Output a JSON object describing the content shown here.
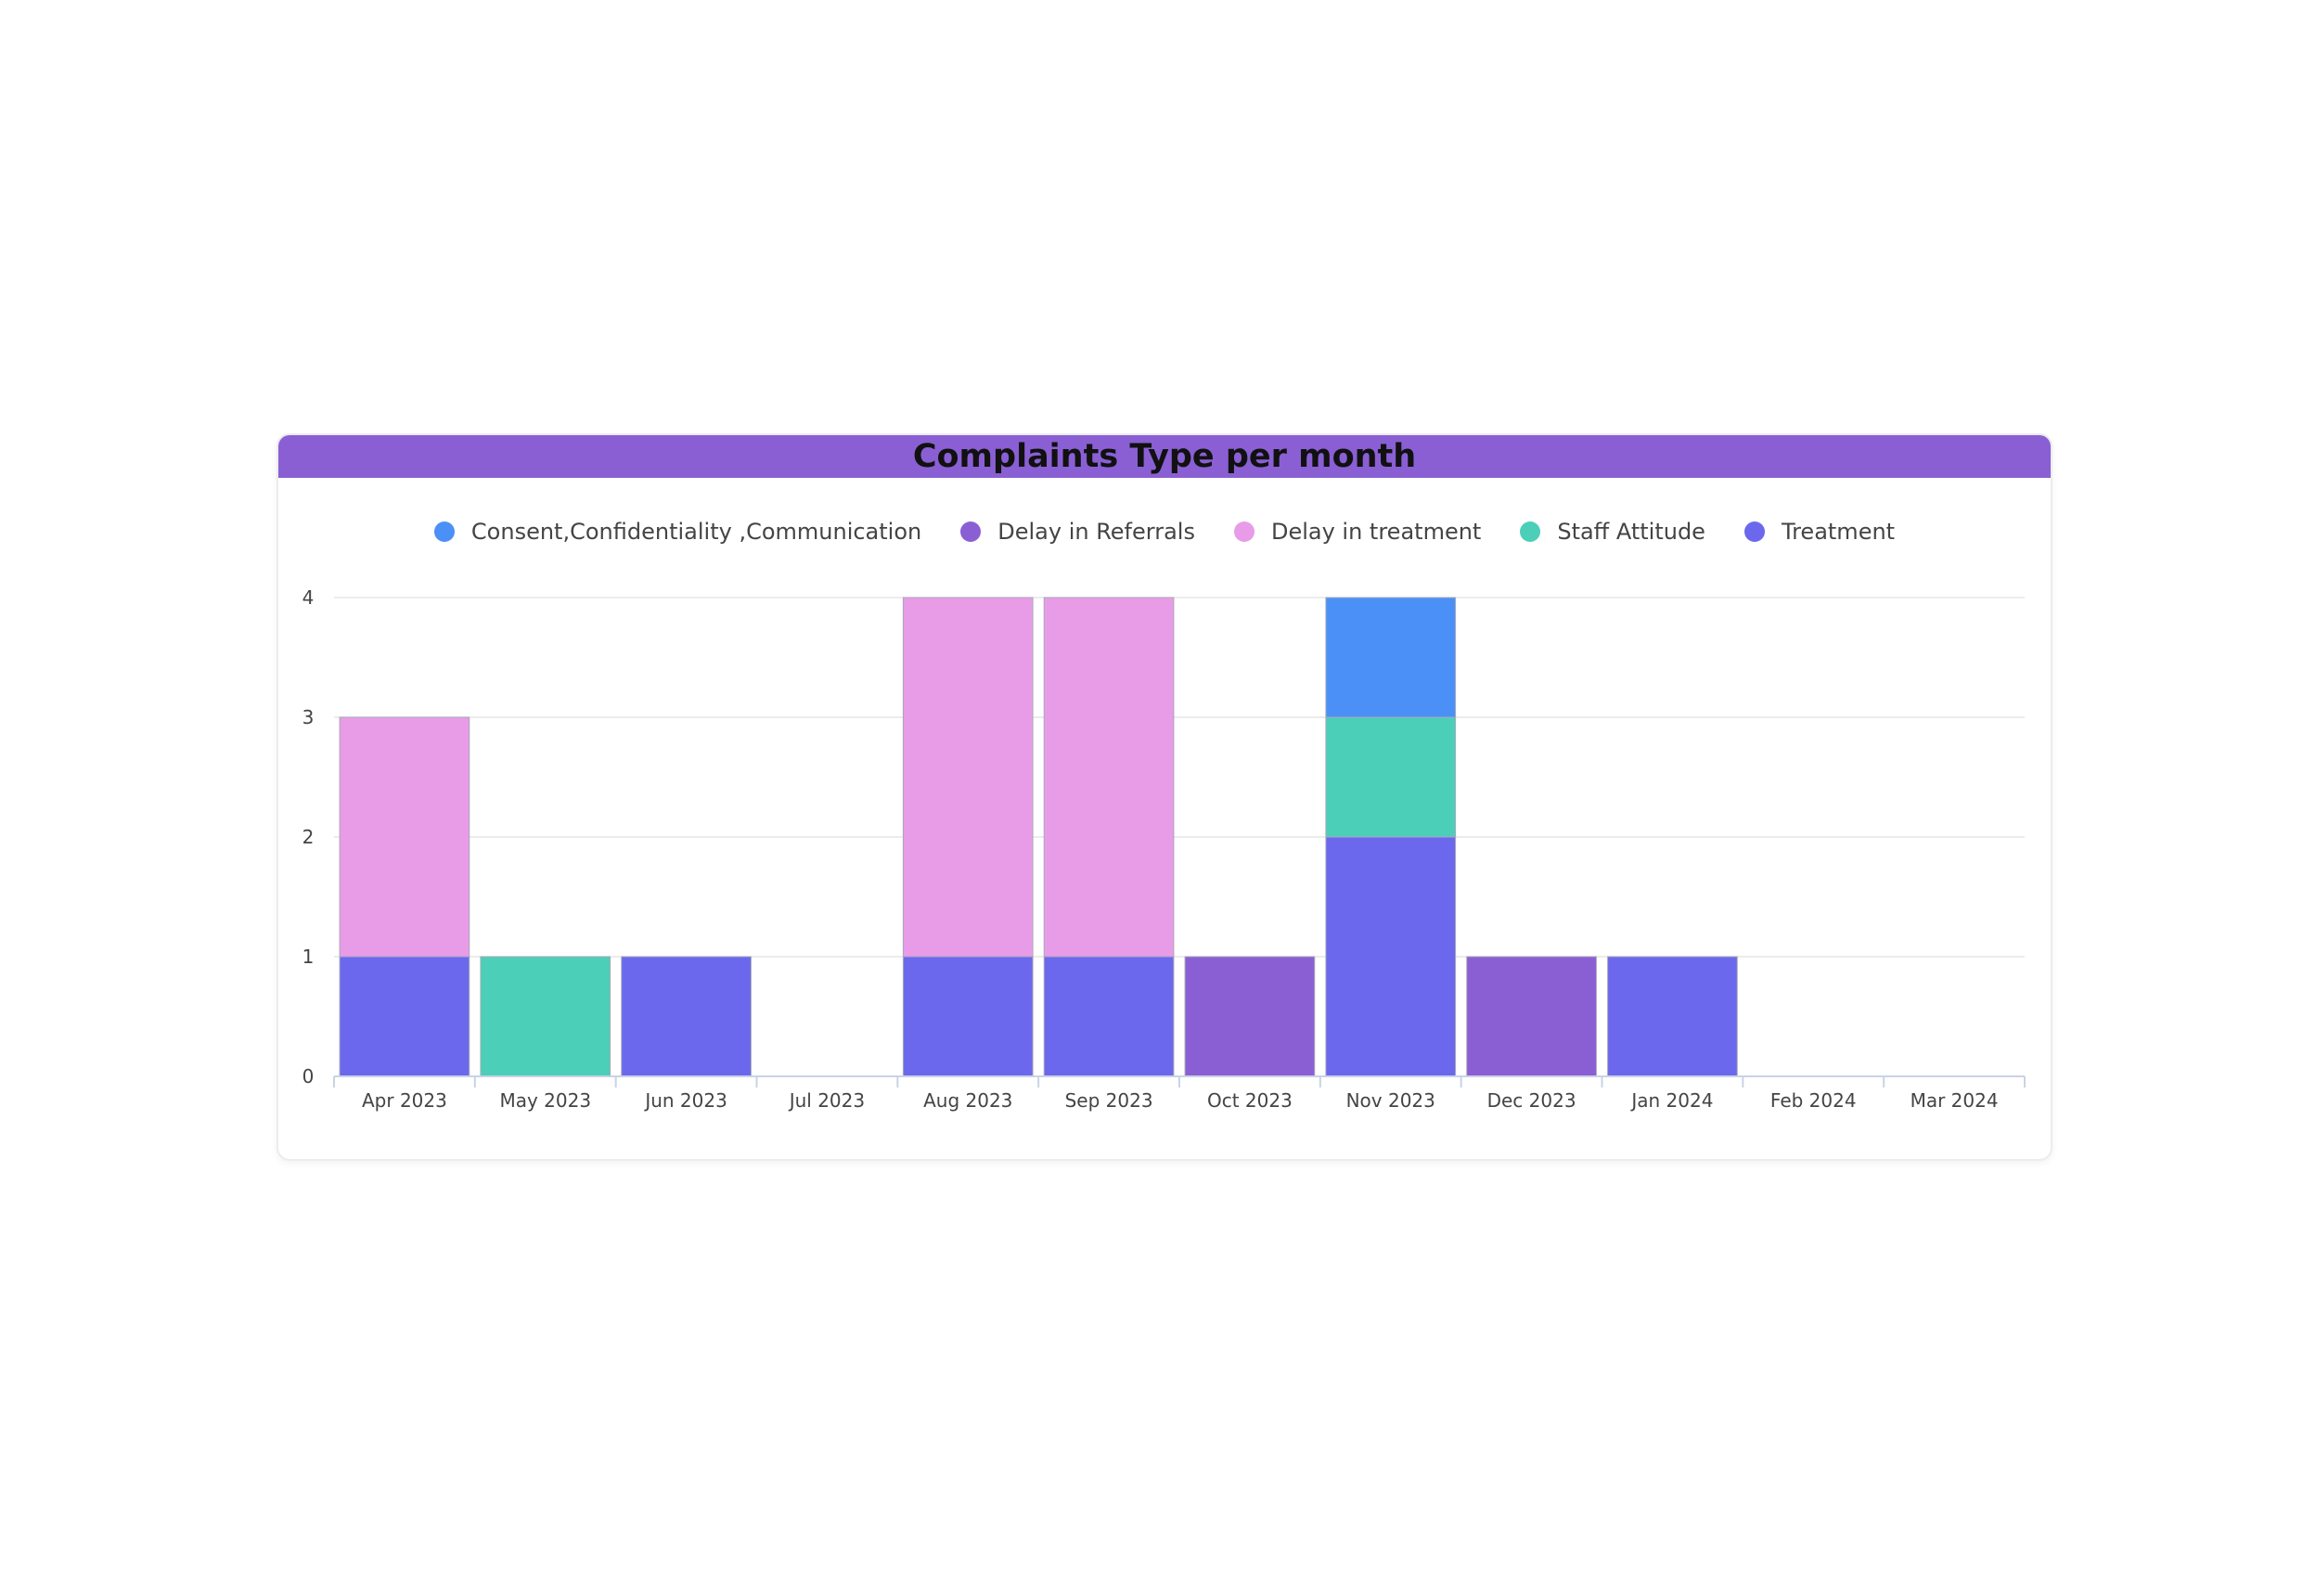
{
  "chart_data": {
    "type": "bar",
    "stacked": true,
    "title": "Complaints Type per month",
    "categories": [
      "Apr 2023",
      "May 2023",
      "Jun 2023",
      "Jul 2023",
      "Aug 2023",
      "Sep 2023",
      "Oct 2023",
      "Nov 2023",
      "Dec 2023",
      "Jan 2024",
      "Feb 2024",
      "Mar 2024"
    ],
    "series": [
      {
        "name": "Consent,Confidentiality ,Communication",
        "color": "#4a90f7",
        "values": [
          0,
          0,
          0,
          0,
          0,
          0,
          0,
          1,
          0,
          0,
          0,
          0
        ]
      },
      {
        "name": "Delay in Referrals",
        "color": "#8a5fd4",
        "values": [
          0,
          0,
          0,
          0,
          0,
          0,
          1,
          0,
          1,
          0,
          0,
          0
        ]
      },
      {
        "name": "Delay in treatment",
        "color": "#e89ce8",
        "values": [
          2,
          0,
          0,
          0,
          3,
          3,
          0,
          0,
          0,
          0,
          0,
          0
        ]
      },
      {
        "name": "Staff Attitude",
        "color": "#4bcfb8",
        "values": [
          0,
          1,
          0,
          0,
          0,
          0,
          0,
          1,
          0,
          0,
          0,
          0
        ]
      },
      {
        "name": "Treatment",
        "color": "#6b68ee",
        "values": [
          1,
          0,
          1,
          0,
          1,
          1,
          0,
          2,
          0,
          1,
          0,
          0
        ]
      }
    ],
    "stack_order": [
      "Treatment",
      "Delay in Referrals",
      "Staff Attitude",
      "Delay in treatment",
      "Consent,Confidentiality ,Communication"
    ],
    "y_ticks": [
      0,
      1,
      2,
      3,
      4
    ],
    "ylim": [
      0,
      4
    ],
    "grid": true,
    "legend_position": "top-center",
    "xlabel": "",
    "ylabel": ""
  }
}
